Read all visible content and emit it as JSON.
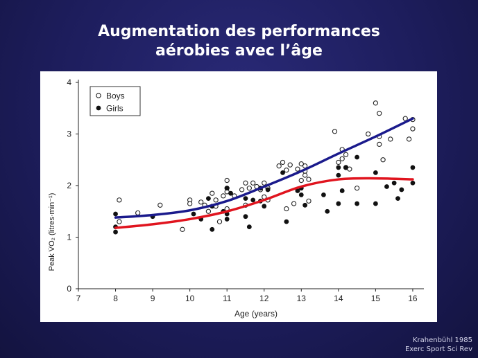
{
  "slide": {
    "title_line1": "Augmentation des performances",
    "title_line2": "aérobies avec l’âge",
    "credit_line1": "Krahenbühl 1985",
    "credit_line2": "Exerc Sport Sci Rev"
  },
  "colors": {
    "background": "#1d1d5c",
    "boys_trend": "#1a1a8c",
    "girls_trend": "#e0141e"
  },
  "chart_data": {
    "type": "scatter",
    "xlabel": "Age (years)",
    "ylabel": "Peak V̇O₂ (litres·min⁻¹)",
    "xlim": [
      7,
      16.3
    ],
    "ylim": [
      0,
      4
    ],
    "x_ticks": [
      7,
      8,
      9,
      10,
      11,
      12,
      13,
      14,
      15,
      16
    ],
    "y_ticks": [
      0,
      1,
      2,
      3,
      4
    ],
    "grid": false,
    "legend_position": "top-left",
    "series": [
      {
        "name": "Boys",
        "marker": "open-circle",
        "points": [
          [
            8.1,
            1.72
          ],
          [
            8.1,
            1.3
          ],
          [
            8.6,
            1.47
          ],
          [
            9.2,
            1.62
          ],
          [
            9.8,
            1.15
          ],
          [
            10.0,
            1.72
          ],
          [
            10.0,
            1.65
          ],
          [
            10.3,
            1.68
          ],
          [
            10.4,
            1.62
          ],
          [
            10.5,
            1.5
          ],
          [
            10.6,
            1.85
          ],
          [
            10.7,
            1.72
          ],
          [
            10.7,
            1.6
          ],
          [
            10.8,
            1.3
          ],
          [
            10.9,
            1.8
          ],
          [
            11.0,
            2.1
          ],
          [
            11.0,
            1.95
          ],
          [
            11.0,
            1.88
          ],
          [
            11.0,
            1.55
          ],
          [
            11.2,
            1.8
          ],
          [
            11.4,
            1.92
          ],
          [
            11.5,
            2.05
          ],
          [
            11.5,
            1.62
          ],
          [
            11.6,
            1.95
          ],
          [
            11.7,
            2.05
          ],
          [
            11.8,
            1.98
          ],
          [
            11.9,
            1.92
          ],
          [
            12.0,
            2.05
          ],
          [
            12.0,
            1.78
          ],
          [
            12.1,
            1.72
          ],
          [
            12.1,
            1.95
          ],
          [
            12.4,
            2.38
          ],
          [
            12.5,
            2.45
          ],
          [
            12.6,
            2.3
          ],
          [
            12.6,
            1.55
          ],
          [
            12.7,
            2.4
          ],
          [
            12.8,
            1.65
          ],
          [
            12.9,
            2.32
          ],
          [
            13.0,
            2.42
          ],
          [
            13.0,
            2.1
          ],
          [
            13.1,
            2.38
          ],
          [
            13.1,
            2.2
          ],
          [
            13.1,
            2.28
          ],
          [
            13.2,
            2.12
          ],
          [
            13.2,
            1.7
          ],
          [
            13.9,
            3.05
          ],
          [
            14.0,
            2.45
          ],
          [
            14.1,
            2.7
          ],
          [
            14.1,
            2.52
          ],
          [
            14.2,
            2.6
          ],
          [
            14.2,
            2.35
          ],
          [
            14.3,
            2.32
          ],
          [
            14.5,
            1.95
          ],
          [
            14.8,
            3.0
          ],
          [
            15.0,
            3.6
          ],
          [
            15.1,
            3.4
          ],
          [
            15.1,
            2.95
          ],
          [
            15.1,
            2.8
          ],
          [
            15.2,
            2.5
          ],
          [
            15.4,
            2.9
          ],
          [
            15.8,
            3.3
          ],
          [
            15.9,
            2.9
          ],
          [
            16.0,
            3.28
          ],
          [
            16.0,
            3.1
          ]
        ],
        "trend": [
          [
            8.0,
            1.38
          ],
          [
            9.0,
            1.43
          ],
          [
            10.0,
            1.52
          ],
          [
            11.0,
            1.7
          ],
          [
            12.0,
            1.98
          ],
          [
            13.0,
            2.28
          ],
          [
            14.0,
            2.62
          ],
          [
            15.0,
            2.95
          ],
          [
            16.0,
            3.3
          ]
        ]
      },
      {
        "name": "Girls",
        "marker": "filled-circle",
        "points": [
          [
            8.0,
            1.45
          ],
          [
            8.0,
            1.2
          ],
          [
            8.0,
            1.1
          ],
          [
            9.0,
            1.4
          ],
          [
            10.1,
            1.45
          ],
          [
            10.3,
            1.35
          ],
          [
            10.5,
            1.75
          ],
          [
            10.6,
            1.6
          ],
          [
            10.6,
            1.15
          ],
          [
            10.9,
            1.5
          ],
          [
            11.0,
            1.95
          ],
          [
            11.0,
            1.45
          ],
          [
            11.0,
            1.35
          ],
          [
            11.1,
            1.85
          ],
          [
            11.5,
            1.75
          ],
          [
            11.5,
            1.4
          ],
          [
            11.6,
            1.2
          ],
          [
            11.7,
            1.72
          ],
          [
            11.9,
            1.95
          ],
          [
            11.9,
            1.7
          ],
          [
            12.0,
            1.6
          ],
          [
            12.1,
            1.92
          ],
          [
            12.5,
            2.25
          ],
          [
            12.6,
            1.3
          ],
          [
            12.9,
            1.9
          ],
          [
            13.0,
            1.95
          ],
          [
            13.0,
            1.82
          ],
          [
            13.1,
            1.62
          ],
          [
            13.6,
            1.82
          ],
          [
            13.7,
            1.5
          ],
          [
            14.0,
            2.35
          ],
          [
            14.0,
            2.2
          ],
          [
            14.0,
            1.65
          ],
          [
            14.1,
            1.9
          ],
          [
            14.2,
            2.35
          ],
          [
            14.5,
            2.55
          ],
          [
            14.5,
            1.65
          ],
          [
            15.0,
            2.25
          ],
          [
            15.0,
            1.65
          ],
          [
            15.3,
            1.98
          ],
          [
            15.5,
            2.05
          ],
          [
            15.6,
            1.75
          ],
          [
            15.7,
            1.92
          ],
          [
            16.0,
            2.35
          ],
          [
            16.0,
            2.05
          ]
        ],
        "trend": [
          [
            8.0,
            1.18
          ],
          [
            9.0,
            1.25
          ],
          [
            10.0,
            1.35
          ],
          [
            11.0,
            1.5
          ],
          [
            12.0,
            1.72
          ],
          [
            13.0,
            1.98
          ],
          [
            14.0,
            2.12
          ],
          [
            15.0,
            2.14
          ],
          [
            16.0,
            2.12
          ]
        ]
      }
    ]
  }
}
